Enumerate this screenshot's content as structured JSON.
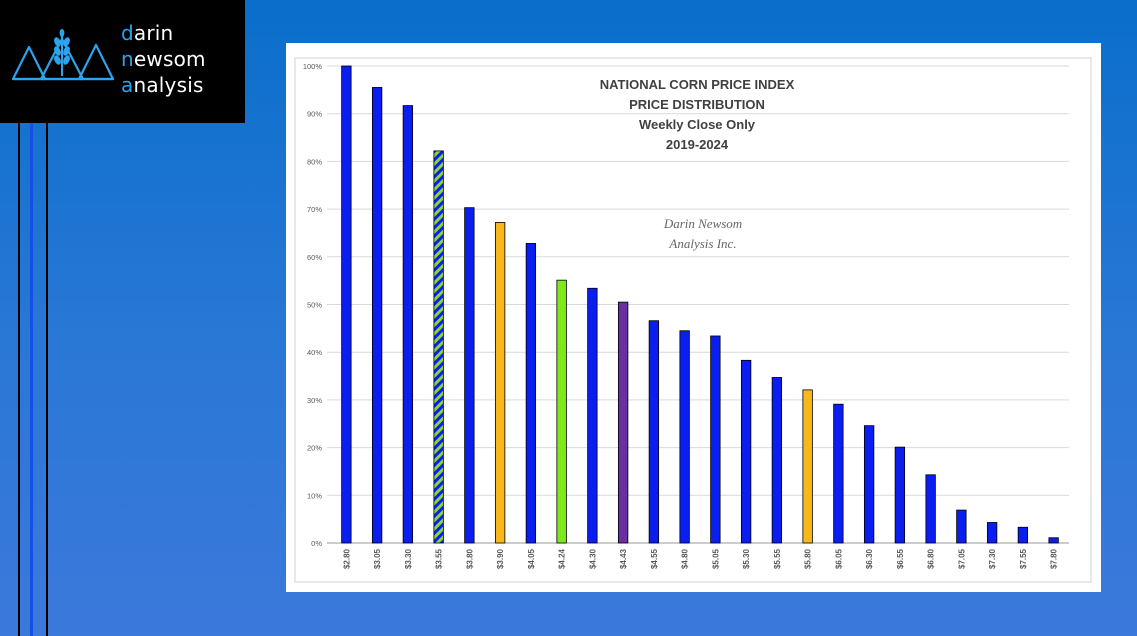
{
  "brand": {
    "line1": {
      "accent": "d",
      "rest": "arin"
    },
    "line2": {
      "accent": "n",
      "rest": "ewsom"
    },
    "line3": {
      "accent": "a",
      "rest": "nalysis"
    }
  },
  "colors": {
    "blue": "#0a1ef0",
    "orange": "#f8b81a",
    "lime": "#7fe81a",
    "purple": "#6a2fa0",
    "hatch_green": "#8bd53c",
    "brand_accent": "#2aa4ee"
  },
  "chart_data": {
    "type": "bar",
    "title_lines": [
      "NATIONAL CORN PRICE INDEX",
      "PRICE DISTRIBUTION",
      "Weekly Close Only",
      "2019-2024"
    ],
    "watermark_lines": [
      "Darin Newsom",
      "Analysis Inc."
    ],
    "categories": [
      "$2.80",
      "$3.05",
      "$3.30",
      "$3.55",
      "$3.80",
      "$3.90",
      "$4.05",
      "$4.24",
      "$4.30",
      "$4.43",
      "$4.55",
      "$4.80",
      "$5.05",
      "$5.30",
      "$5.55",
      "$5.80",
      "$6.05",
      "$6.30",
      "$6.55",
      "$6.80",
      "$7.05",
      "$7.30",
      "$7.55",
      "$7.80"
    ],
    "values": [
      100,
      95.5,
      91.7,
      82.2,
      70.3,
      67.2,
      62.8,
      55.1,
      53.4,
      50.5,
      46.6,
      44.5,
      43.4,
      38.3,
      34.7,
      32.1,
      29.1,
      24.6,
      20.1,
      14.3,
      6.9,
      4.3,
      3.3,
      1.1
    ],
    "bar_styles": [
      "blue",
      "blue",
      "blue",
      "hatch",
      "blue",
      "orange",
      "blue",
      "lime",
      "blue",
      "purple",
      "blue",
      "blue",
      "blue",
      "blue",
      "blue",
      "orange",
      "blue",
      "blue",
      "blue",
      "blue",
      "blue",
      "blue",
      "blue",
      "blue"
    ],
    "y_ticks": [
      "0%",
      "10%",
      "20%",
      "30%",
      "40%",
      "50%",
      "60%",
      "70%",
      "80%",
      "90%",
      "100%"
    ],
    "ylim": [
      0,
      100
    ],
    "grid": true,
    "legend": "none"
  }
}
